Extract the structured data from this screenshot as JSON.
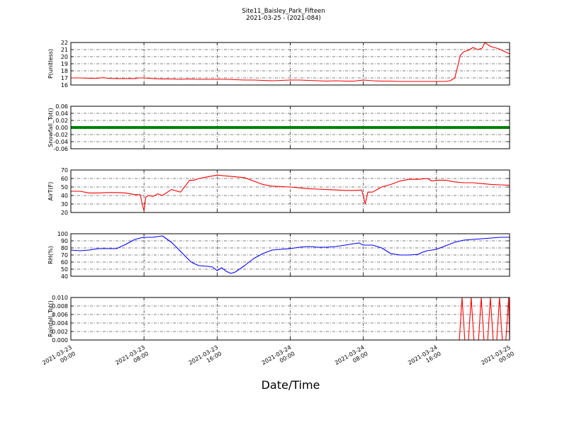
{
  "figure": {
    "title_line1": "Site11_Baisley_Park_Fifteen",
    "title_line2": "2021-03-25 - (2021-084)",
    "xlabel": "Date/Time"
  },
  "chart_data": {
    "type": "line",
    "x_range": [
      "2021-03-23 00:00",
      "2021-03-25 00:00"
    ],
    "x_ticks": [
      [
        "2021-03-23",
        "00:00"
      ],
      [
        "2021-03-23",
        "08:00"
      ],
      [
        "2021-03-23",
        "16:00"
      ],
      [
        "2021-03-24",
        "00:00"
      ],
      [
        "2021-03-24",
        "08:00"
      ],
      [
        "2021-03-24",
        "16:00"
      ],
      [
        "2021-03-25",
        "00:00"
      ]
    ],
    "grid": true,
    "panels": [
      {
        "ylabel": "P(unitless)",
        "ylim": [
          16,
          22
        ],
        "yticks": [
          "16",
          "17",
          "18",
          "19",
          "20",
          "21",
          "22"
        ],
        "color": "#ff0000",
        "hours": [
          0,
          1,
          2,
          3,
          3.5,
          4,
          5,
          6,
          7,
          7.5,
          8,
          9,
          10,
          11,
          12,
          13,
          14,
          15,
          16,
          17,
          18,
          19,
          20,
          21,
          22,
          23,
          24,
          25,
          26,
          27,
          28,
          29,
          30,
          31,
          32,
          33,
          34,
          35,
          36,
          37,
          38,
          39,
          40,
          41,
          41.5,
          42,
          42.3,
          42.6,
          43,
          43.5,
          44,
          44.5,
          45,
          45.3,
          45.6,
          46,
          46.3,
          46.6,
          47,
          47.5,
          48
        ],
        "values": [
          17.0,
          17.0,
          16.95,
          16.95,
          17.05,
          16.95,
          16.9,
          16.9,
          16.9,
          17.0,
          17.0,
          16.9,
          16.85,
          16.85,
          16.8,
          16.85,
          16.8,
          16.8,
          16.8,
          16.8,
          16.75,
          16.7,
          16.7,
          16.65,
          16.6,
          16.65,
          16.7,
          16.7,
          16.65,
          16.6,
          16.55,
          16.6,
          16.55,
          16.55,
          16.7,
          16.6,
          16.55,
          16.55,
          16.5,
          16.5,
          16.5,
          16.5,
          16.5,
          16.5,
          16.6,
          17.0,
          18.5,
          20.2,
          20.7,
          20.9,
          21.3,
          21.0,
          21.2,
          22.0,
          21.7,
          21.4,
          21.3,
          21.2,
          21.0,
          20.7,
          20.4
        ]
      },
      {
        "ylabel": "Snowfall_Tot()",
        "ylim": [
          -0.06,
          0.06
        ],
        "yticks": [
          "-0.06",
          "-0.04",
          "-0.02",
          "0.00",
          "0.02",
          "0.04",
          "0.06"
        ],
        "color": "#008000",
        "thick": true,
        "hours": [
          0,
          48
        ],
        "values": [
          0,
          0
        ]
      },
      {
        "ylabel": "AirT(F)",
        "ylim": [
          20,
          70
        ],
        "yticks": [
          "20",
          "30",
          "40",
          "50",
          "60",
          "70"
        ],
        "color": "#ff0000",
        "hours": [
          0,
          1,
          2,
          3,
          4,
          5,
          6,
          7,
          7.6,
          7.8,
          8.0,
          8.2,
          8.5,
          9,
          9.5,
          10,
          11,
          12,
          13,
          13.5,
          14,
          15,
          16,
          17,
          18,
          19,
          20,
          21,
          22,
          23,
          24,
          25,
          26,
          27,
          28,
          29,
          30,
          31,
          31.8,
          32.0,
          32.2,
          32.5,
          33,
          33.5,
          34,
          35,
          36,
          37,
          38,
          39,
          39.5,
          40,
          41,
          42,
          43,
          44,
          45,
          46,
          47,
          48
        ],
        "values": [
          45,
          45,
          43,
          43,
          43.5,
          43.5,
          43,
          41,
          41,
          30,
          22,
          38,
          40,
          39,
          42,
          40,
          47,
          44,
          58,
          58,
          60,
          62,
          64,
          63,
          62,
          61,
          57,
          53,
          51,
          50.5,
          50,
          49,
          48,
          47.5,
          47,
          46.5,
          46,
          46,
          46.5,
          40,
          30,
          44,
          44,
          47,
          50,
          53,
          57,
          59,
          59,
          60,
          57,
          58,
          58,
          56,
          55,
          55,
          54,
          53,
          52.5,
          52
        ]
      },
      {
        "ylabel": "RH(%)",
        "ylim": [
          40,
          100
        ],
        "yticks": [
          "40",
          "50",
          "60",
          "70",
          "80",
          "90",
          "100"
        ],
        "color": "#0000ff",
        "hours": [
          0,
          1,
          2,
          3,
          4,
          5,
          6,
          7,
          7.9,
          8.0,
          8.2,
          9,
          9.5,
          10,
          11,
          12,
          13,
          13.3,
          14,
          15,
          15.5,
          16,
          16.5,
          17,
          17.5,
          18,
          19,
          20,
          21,
          22,
          23,
          24,
          25,
          26,
          27,
          28,
          29,
          30,
          31,
          31.5,
          32,
          33,
          34,
          35,
          36,
          36.5,
          37,
          38,
          38.5,
          39,
          40,
          41,
          42,
          43,
          44,
          45,
          46,
          47,
          48
        ],
        "values": [
          77,
          76,
          77,
          79,
          79,
          79,
          85,
          92,
          95,
          94,
          95,
          95,
          96,
          97,
          88,
          75,
          62,
          59,
          55,
          54,
          53,
          48,
          52,
          47,
          44,
          46,
          55,
          65,
          72,
          77,
          78,
          79,
          81,
          82,
          81,
          81,
          82,
          84,
          86,
          87,
          84,
          84,
          80,
          72,
          70,
          70,
          70,
          71,
          74,
          76,
          78,
          83,
          88,
          91,
          92,
          93,
          94,
          95,
          95
        ]
      },
      {
        "ylabel": "Rainfall_Tot()",
        "ylim": [
          0,
          0.01
        ],
        "yticks": [
          "0.000",
          "0.002",
          "0.004",
          "0.006",
          "0.008",
          "0.010"
        ],
        "color": "#ff0000",
        "hours": [
          0,
          42.5,
          42.8,
          43.1,
          43.5,
          43.8,
          44.1,
          44.6,
          44.9,
          45.2,
          45.6,
          45.9,
          46.2,
          46.6,
          46.9,
          47.2,
          47.6,
          47.9,
          48
        ],
        "values": [
          0,
          0,
          0.01,
          0,
          0,
          0.01,
          0,
          0,
          0.01,
          0,
          0,
          0.01,
          0,
          0,
          0.01,
          0,
          0,
          0.01,
          0
        ]
      }
    ]
  }
}
